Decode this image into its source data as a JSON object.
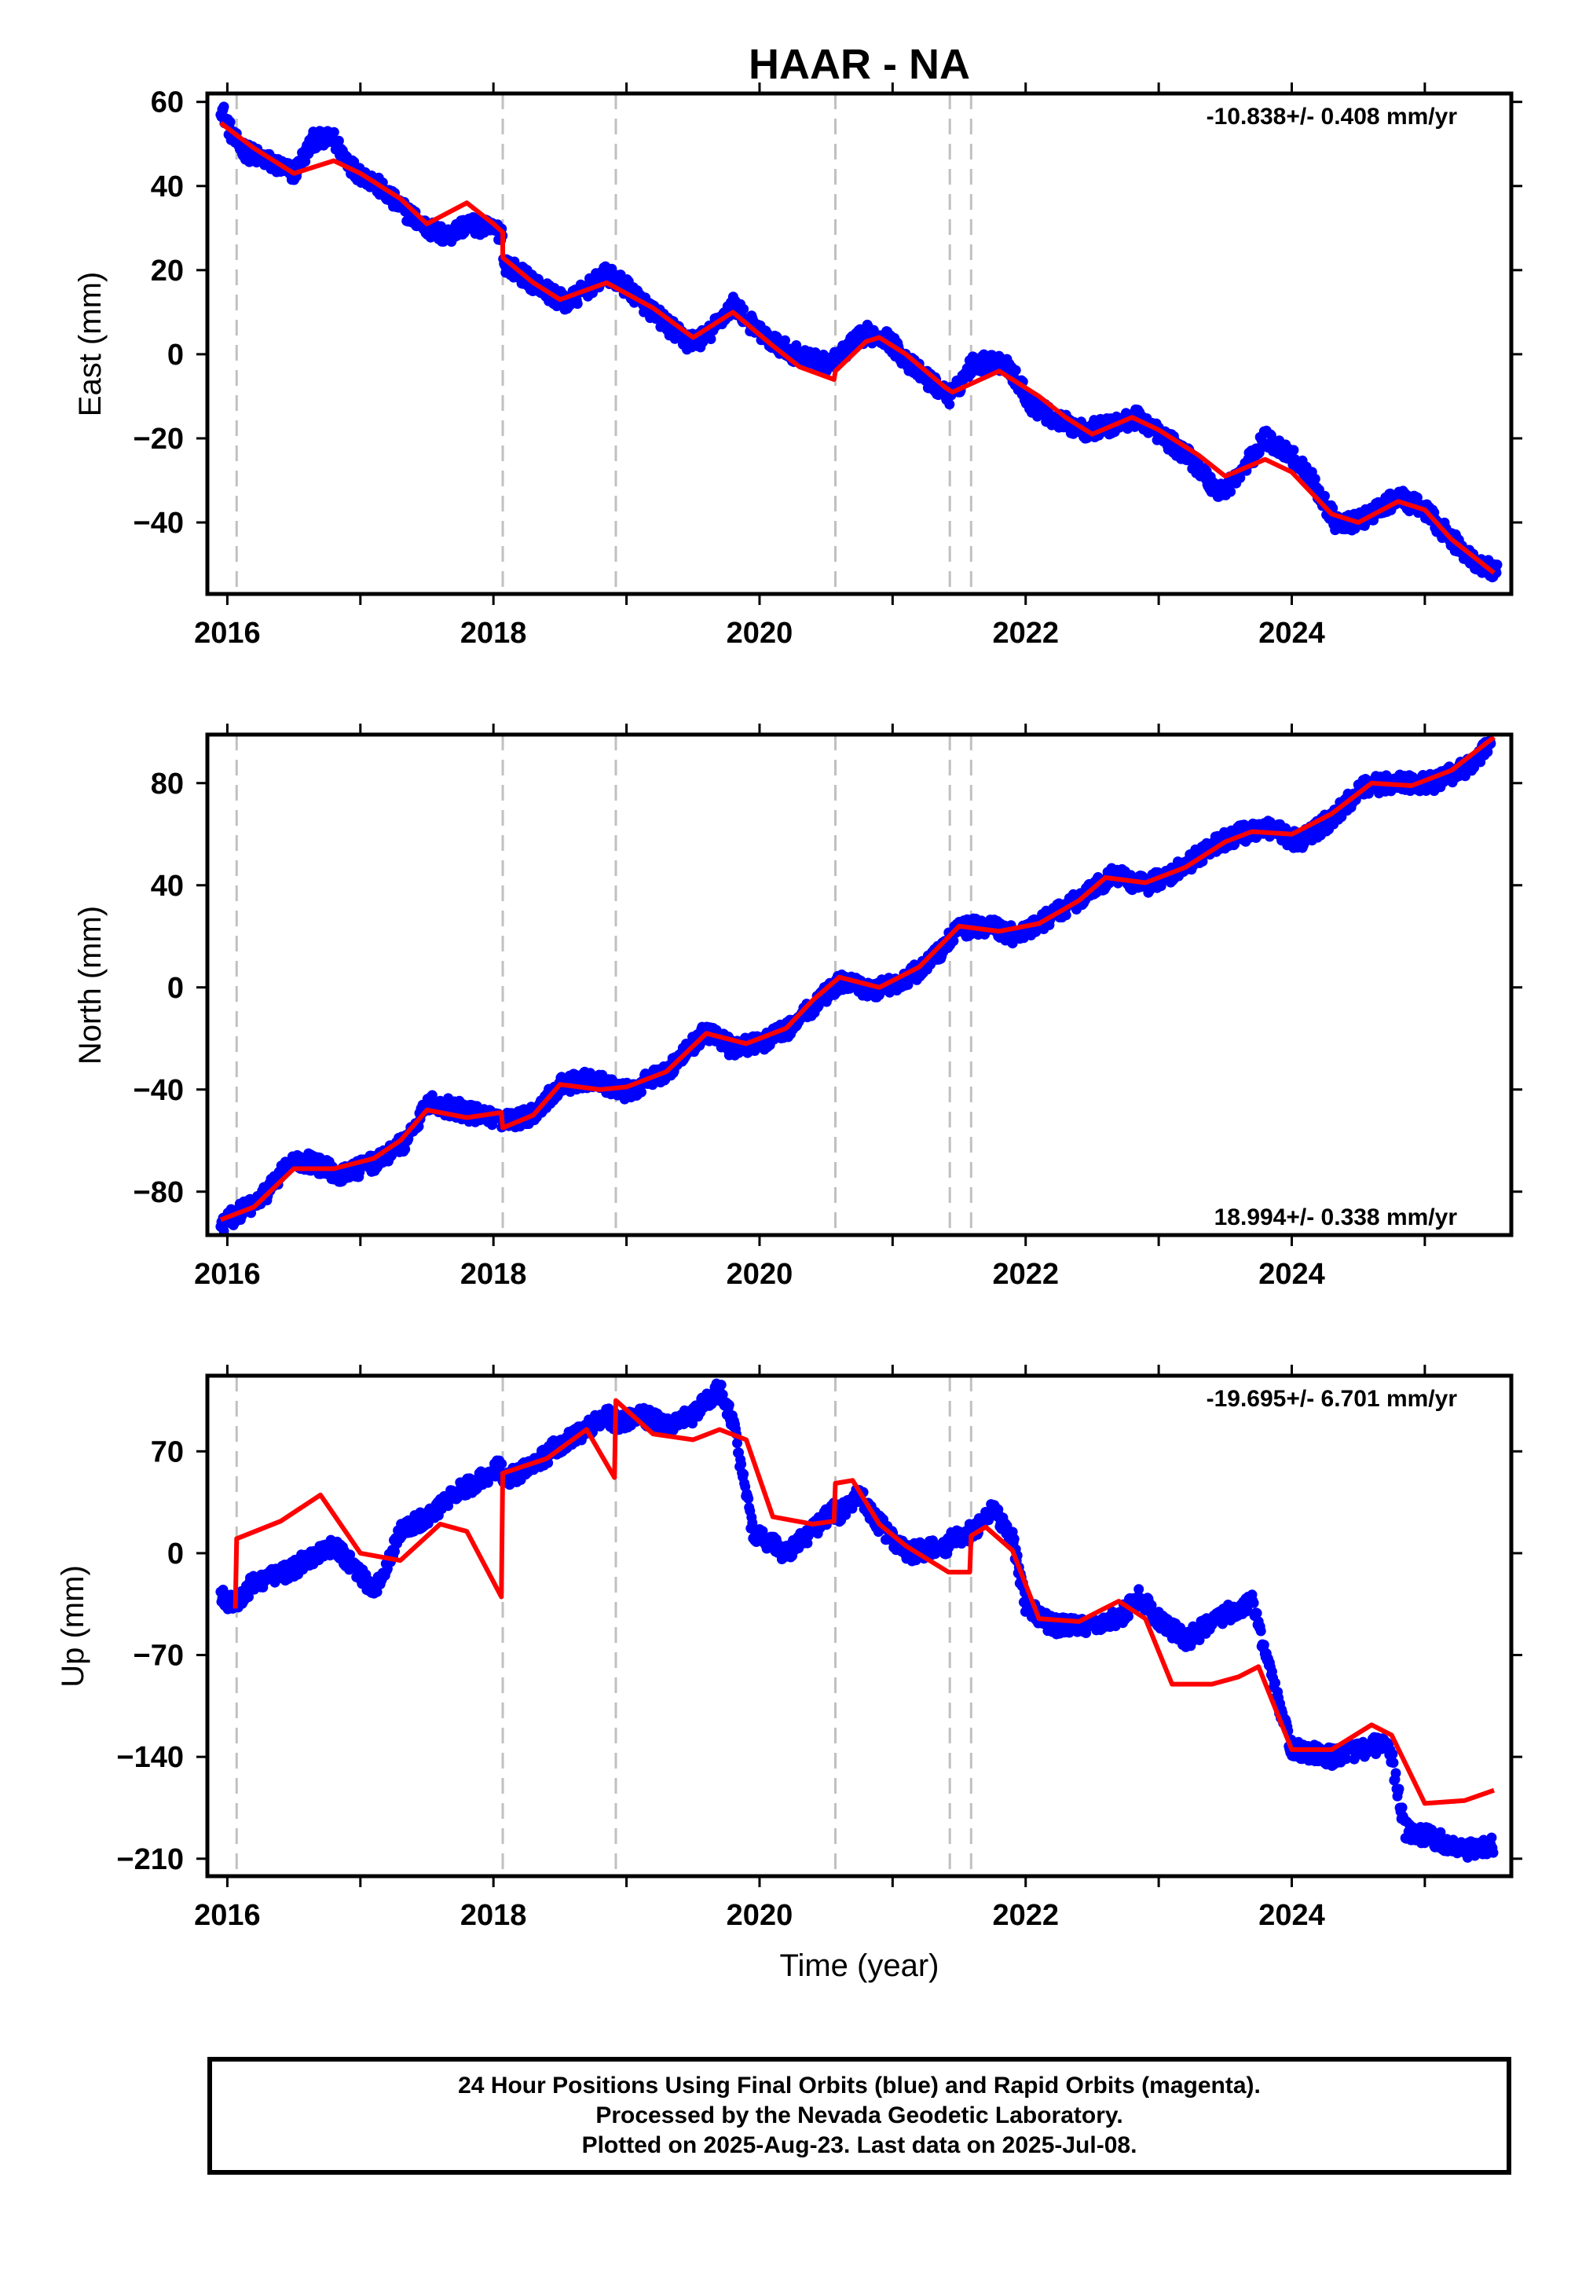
{
  "title": "HAAR - NA",
  "footer": {
    "line1": "24 Hour Positions Using Final Orbits (blue) and Rapid Orbits (magenta).",
    "line2": "Processed by the Nevada Geodetic Laboratory.",
    "line3": "Plotted on 2025-Aug-23. Last data on 2025-Jul-08."
  },
  "colors": {
    "data": "#0000ff",
    "model": "#ff0000",
    "breaks": "#c0c0c0",
    "frame": "#000000"
  },
  "xlabel": "Time (year)",
  "x_ticks": [
    "2016",
    "2018",
    "2020",
    "2022",
    "2024"
  ],
  "x_range": [
    2015.85,
    2025.65
  ],
  "break_epochs": [
    2016.07,
    2018.07,
    2018.92,
    2020.57,
    2021.43,
    2021.59
  ],
  "chart_data": [
    {
      "type": "scatter",
      "ylabel": "East (mm)",
      "rate": "-10.838+/- 0.408 mm/yr",
      "rate_position": "top-right",
      "ylim": [
        -57,
        62
      ],
      "yticks": [
        60,
        40,
        20,
        0,
        -20,
        -40
      ],
      "ytick_labels": [
        "60",
        "40",
        "20",
        "0",
        "−20",
        "−40"
      ],
      "model": {
        "name": "model",
        "x": [
          2015.95,
          2016.2,
          2016.5,
          2016.8,
          2017.0,
          2017.3,
          2017.5,
          2017.8,
          2018.0,
          2018.07,
          2018.07,
          2018.3,
          2018.5,
          2018.85,
          2019.2,
          2019.5,
          2019.8,
          2020.1,
          2020.3,
          2020.56,
          2020.57,
          2020.8,
          2020.9,
          2021.1,
          2021.4,
          2021.45,
          2021.8,
          2022.1,
          2022.3,
          2022.5,
          2022.8,
          2023.0,
          2023.3,
          2023.5,
          2023.8,
          2024.0,
          2024.3,
          2024.5,
          2024.8,
          2025.0,
          2025.2,
          2025.52
        ],
        "y": [
          55,
          49,
          43,
          46,
          43,
          37,
          31,
          36,
          31,
          29,
          23,
          17,
          13,
          17,
          11,
          4,
          10,
          2,
          -3,
          -6,
          -4,
          3,
          4,
          0,
          -8,
          -9,
          -4,
          -10,
          -15,
          -19,
          -15,
          -18,
          -24,
          -29,
          -25,
          -28,
          -38,
          -40,
          -35,
          -37,
          -44,
          -52
        ]
      },
      "observations": {
        "name": "observations",
        "x": [
          2015.95,
          2016.05,
          2016.15,
          2016.3,
          2016.5,
          2016.65,
          2016.8,
          2016.95,
          2017.1,
          2017.3,
          2017.5,
          2017.65,
          2017.8,
          2017.95,
          2018.07,
          2018.07,
          2018.3,
          2018.55,
          2018.85,
          2019.0,
          2019.2,
          2019.45,
          2019.6,
          2019.8,
          2020.0,
          2020.2,
          2020.45,
          2020.56,
          2020.57,
          2020.8,
          2020.95,
          2021.15,
          2021.42,
          2021.47,
          2021.6,
          2021.85,
          2022.05,
          2022.25,
          2022.45,
          2022.65,
          2022.85,
          2023.05,
          2023.25,
          2023.45,
          2023.6,
          2023.8,
          2024.0,
          2024.15,
          2024.35,
          2024.55,
          2024.8,
          2025.0,
          2025.2,
          2025.4,
          2025.55
        ],
        "y": [
          59,
          51,
          48,
          46,
          43,
          51,
          51,
          44,
          41,
          35,
          30,
          28,
          31,
          30,
          29,
          22,
          17,
          12,
          19,
          16,
          10,
          3,
          4,
          12,
          5,
          1,
          -2,
          -2,
          -1,
          5,
          4,
          -3,
          -10,
          -9,
          -2,
          -2,
          -12,
          -16,
          -18,
          -17,
          -15,
          -20,
          -25,
          -33,
          -29,
          -20,
          -24,
          -30,
          -41,
          -39,
          -34,
          -37,
          -44,
          -50,
          -52
        ]
      },
      "trend_mm_per_yr": -10.838,
      "trend_sigma": 0.408
    },
    {
      "type": "scatter",
      "ylabel": "North (mm)",
      "rate": "18.994+/- 0.338 mm/yr",
      "rate_position": "bottom-right",
      "ylim": [
        -97,
        99
      ],
      "yticks": [
        80,
        40,
        0,
        -40,
        -80
      ],
      "ytick_labels": [
        "80",
        "40",
        "0",
        "−40",
        "−80"
      ],
      "model": {
        "name": "model",
        "x": [
          2015.95,
          2016.2,
          2016.5,
          2016.8,
          2017.1,
          2017.3,
          2017.5,
          2017.8,
          2018.06,
          2018.07,
          2018.3,
          2018.5,
          2018.8,
          2019.0,
          2019.3,
          2019.6,
          2019.9,
          2020.2,
          2020.4,
          2020.6,
          2020.9,
          2021.2,
          2021.5,
          2021.8,
          2022.1,
          2022.4,
          2022.6,
          2022.9,
          2023.2,
          2023.5,
          2023.7,
          2024.0,
          2024.3,
          2024.6,
          2024.9,
          2025.2,
          2025.52
        ],
        "y": [
          -91,
          -86,
          -71,
          -71,
          -67,
          -60,
          -48,
          -51,
          -49,
          -55,
          -50,
          -38,
          -40,
          -39,
          -33,
          -18,
          -22,
          -16,
          -5,
          4,
          0,
          8,
          24,
          22,
          25,
          34,
          43,
          41,
          47,
          57,
          61,
          60,
          68,
          80,
          79,
          85,
          98
        ]
      },
      "observations": {
        "name": "observations",
        "x": [
          2015.95,
          2016.1,
          2016.25,
          2016.45,
          2016.6,
          2016.85,
          2017.1,
          2017.35,
          2017.5,
          2017.75,
          2018.0,
          2018.07,
          2018.3,
          2018.5,
          2018.75,
          2019.0,
          2019.3,
          2019.6,
          2019.8,
          2020.0,
          2020.25,
          2020.45,
          2020.6,
          2020.85,
          2021.1,
          2021.3,
          2021.5,
          2021.7,
          2021.95,
          2022.2,
          2022.45,
          2022.65,
          2022.9,
          2023.15,
          2023.4,
          2023.6,
          2023.85,
          2024.05,
          2024.3,
          2024.55,
          2024.8,
          2025.05,
          2025.3,
          2025.5
        ],
        "y": [
          -93,
          -88,
          -83,
          -70,
          -68,
          -73,
          -69,
          -60,
          -45,
          -48,
          -52,
          -53,
          -50,
          -38,
          -36,
          -41,
          -33,
          -17,
          -24,
          -22,
          -15,
          -5,
          2,
          -1,
          3,
          11,
          23,
          24,
          20,
          28,
          36,
          44,
          40,
          46,
          55,
          60,
          62,
          57,
          66,
          79,
          80,
          80,
          86,
          95
        ]
      },
      "trend_mm_per_yr": 18.994,
      "trend_sigma": 0.338
    },
    {
      "type": "scatter",
      "ylabel": "Up (mm)",
      "rate": "-19.695+/- 6.701 mm/yr",
      "rate_position": "top-right",
      "ylim": [
        -222,
        122
      ],
      "yticks": [
        70,
        0,
        -70,
        -140,
        -210
      ],
      "ytick_labels": [
        "70",
        "0",
        "−70",
        "−140",
        "−210"
      ],
      "model": {
        "name": "model",
        "x": [
          2016.06,
          2016.07,
          2016.4,
          2016.7,
          2017.0,
          2017.3,
          2017.6,
          2017.8,
          2018.06,
          2018.07,
          2018.4,
          2018.7,
          2018.91,
          2018.92,
          2019.2,
          2019.5,
          2019.7,
          2019.9,
          2020.1,
          2020.4,
          2020.56,
          2020.57,
          2020.7,
          2020.9,
          2021.1,
          2021.42,
          2021.43,
          2021.58,
          2021.59,
          2021.7,
          2021.9,
          2022.1,
          2022.4,
          2022.7,
          2022.9,
          2023.1,
          2023.4,
          2023.6,
          2023.75,
          2024.0,
          2024.3,
          2024.6,
          2024.75,
          2025.0,
          2025.3,
          2025.52
        ],
        "y": [
          -38,
          10,
          22,
          40,
          0,
          -5,
          20,
          15,
          -30,
          55,
          65,
          85,
          52,
          105,
          82,
          78,
          85,
          78,
          25,
          20,
          22,
          48,
          50,
          20,
          5,
          -13,
          -13,
          -13,
          12,
          18,
          2,
          -45,
          -47,
          -33,
          -45,
          -90,
          -90,
          -85,
          -78,
          -135,
          -135,
          -118,
          -125,
          -172,
          -170,
          -163
        ]
      },
      "observations": {
        "name": "observations",
        "x": [
          2015.95,
          2016.05,
          2016.2,
          2016.4,
          2016.6,
          2016.8,
          2017.0,
          2017.1,
          2017.3,
          2017.5,
          2017.7,
          2017.9,
          2018.06,
          2018.07,
          2018.3,
          2018.5,
          2018.7,
          2018.85,
          2018.92,
          2019.1,
          2019.3,
          2019.5,
          2019.7,
          2019.8,
          2019.95,
          2020.2,
          2020.4,
          2020.56,
          2020.57,
          2020.75,
          2020.9,
          2021.1,
          2021.42,
          2021.43,
          2021.6,
          2021.75,
          2021.9,
          2022.0,
          2022.2,
          2022.45,
          2022.7,
          2022.85,
          2023.0,
          2023.2,
          2023.45,
          2023.65,
          2023.7,
          2023.8,
          2024.0,
          2024.3,
          2024.55,
          2024.7,
          2024.75,
          2024.85,
          2025.05,
          2025.3,
          2025.52
        ],
        "y": [
          -30,
          -35,
          -20,
          -15,
          -5,
          5,
          -15,
          -28,
          15,
          25,
          40,
          50,
          60,
          50,
          60,
          75,
          85,
          95,
          90,
          95,
          88,
          95,
          113,
          90,
          15,
          0,
          15,
          30,
          25,
          40,
          20,
          0,
          5,
          10,
          15,
          30,
          10,
          -35,
          -50,
          -50,
          -45,
          -30,
          -45,
          -60,
          -45,
          -35,
          -30,
          -70,
          -135,
          -140,
          -135,
          -130,
          -140,
          -190,
          -195,
          -205,
          -200
        ]
      },
      "trend_mm_per_yr": -19.695,
      "trend_sigma": 6.701
    }
  ]
}
